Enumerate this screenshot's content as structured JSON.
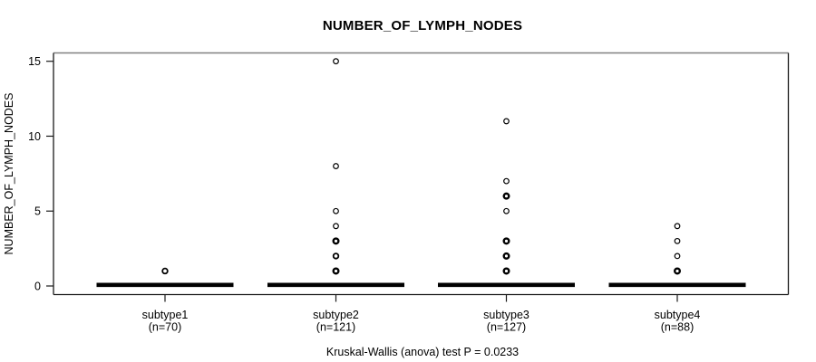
{
  "chart_data": {
    "type": "boxplot",
    "title": "NUMBER_OF_LYMPH_NODES",
    "ylabel": "NUMBER_OF_LYMPH_NODES",
    "xlabel": "",
    "caption": "Kruskal-Wallis (anova) test P = 0.0233",
    "ylim": [
      0,
      15
    ],
    "yticks": [
      0,
      5,
      10,
      15
    ],
    "grid": false,
    "legend": null,
    "categories": [
      {
        "label": "subtype1",
        "n_label": "(n=70)",
        "n": 70,
        "median": 0,
        "q1": 0,
        "q3": 0,
        "whisker_low": 0,
        "whisker_high": 0,
        "outliers": [
          1
        ],
        "outlier_weights": [
          "medium"
        ]
      },
      {
        "label": "subtype2",
        "n_label": "(n=121)",
        "n": 121,
        "median": 0,
        "q1": 0,
        "q3": 0,
        "whisker_low": 0,
        "whisker_high": 0,
        "outliers": [
          15,
          8,
          5,
          4,
          3,
          2,
          1
        ],
        "outlier_weights": [
          "light",
          "light",
          "light",
          "light",
          "bold",
          "medium",
          "bold"
        ]
      },
      {
        "label": "subtype3",
        "n_label": "(n=127)",
        "n": 127,
        "median": 0,
        "q1": 0,
        "q3": 0,
        "whisker_low": 0,
        "whisker_high": 0,
        "outliers": [
          11,
          7,
          6,
          5,
          3,
          2,
          1
        ],
        "outlier_weights": [
          "light",
          "light",
          "bold",
          "light",
          "bold",
          "bold",
          "bold"
        ]
      },
      {
        "label": "subtype4",
        "n_label": "(n=88)",
        "n": 88,
        "median": 0,
        "q1": 0,
        "q3": 0,
        "whisker_low": 0,
        "whisker_high": 0,
        "outliers": [
          4,
          3,
          2,
          1
        ],
        "outlier_weights": [
          "light",
          "light",
          "light",
          "bold"
        ]
      }
    ],
    "colors": {
      "background": "#ffffff",
      "text": "#000000",
      "box": "#000000",
      "outlier": "#000000",
      "frame": "#1a1a1a",
      "frame_top": "#808080"
    }
  }
}
